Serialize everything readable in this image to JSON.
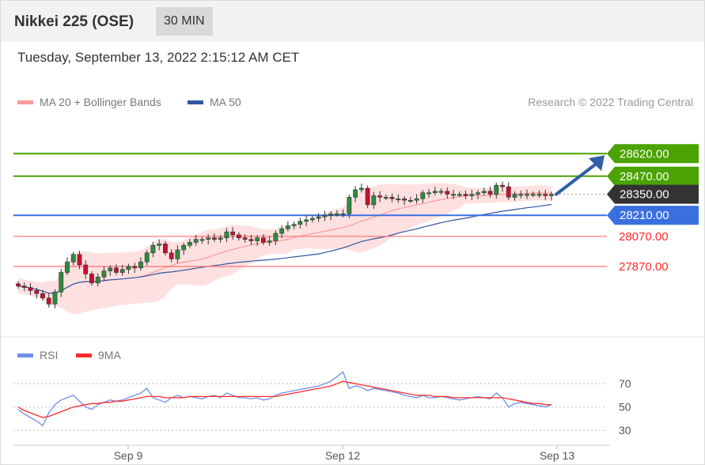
{
  "header": {
    "instrument": "Nikkei 225 (OSE)",
    "timeframe": "30 MIN"
  },
  "datetime": "Tuesday, September 13, 2022 2:15:12 AM CET",
  "legend": {
    "ma20": "MA 20 + Bollinger Bands",
    "ma50": "MA 50",
    "credit": "Research © 2022 Trading Central"
  },
  "rsi_legend": {
    "rsi": "RSI",
    "ma9": "9MA"
  },
  "colors": {
    "resistance": "#4aa300",
    "last": "#333333",
    "pivot": "#3a6fe0",
    "support": "#ff7a7a",
    "bollinger": "#ffd6d6",
    "ma20": "#ff9a9a",
    "ma50": "#2f56a0",
    "rsi": "#6f8fe8",
    "rsi_ma": "#ff2a2a",
    "candle_up": "#2e8b3c",
    "candle_down": "#c8102e",
    "arrow": "#2f5fa5"
  },
  "chart_data": [
    {
      "type": "candlestick",
      "ylim": [
        27470,
        28900
      ],
      "x_ticks": [
        "Sep 9",
        "Sep 12",
        "Sep 13"
      ],
      "levels": [
        {
          "label": "28620.00",
          "value": 28620,
          "kind": "resistance"
        },
        {
          "label": "28470.00",
          "value": 28470,
          "kind": "resistance"
        },
        {
          "label": "28350.00",
          "value": 28350,
          "kind": "last"
        },
        {
          "label": "28210.00",
          "value": 28210,
          "kind": "pivot"
        },
        {
          "label": "28070.00",
          "value": 28070,
          "kind": "support"
        },
        {
          "label": "27870.00",
          "value": 27870,
          "kind": "support"
        }
      ],
      "close": [
        27740,
        27730,
        27710,
        27690,
        27660,
        27620,
        27700,
        27830,
        27900,
        27950,
        27880,
        27820,
        27760,
        27800,
        27840,
        27860,
        27830,
        27850,
        27870,
        27860,
        27900,
        27960,
        28010,
        28020,
        27960,
        27920,
        27980,
        28010,
        28030,
        28050,
        28050,
        28060,
        28050,
        28060,
        28100,
        28080,
        28060,
        28050,
        28040,
        28060,
        28030,
        28040,
        28090,
        28120,
        28140,
        28150,
        28170,
        28180,
        28190,
        28200,
        28210,
        28220,
        28220,
        28220,
        28330,
        28380,
        28390,
        28280,
        28340,
        28330,
        28330,
        28320,
        28320,
        28310,
        28310,
        28320,
        28360,
        28360,
        28370,
        28370,
        28350,
        28350,
        28350,
        28340,
        28350,
        28360,
        28370,
        28350,
        28410,
        28400,
        28330,
        28350,
        28350,
        28350,
        28350,
        28350,
        28340,
        28350
      ],
      "rsi_ylim": [
        20,
        85
      ],
      "rsi_ticks": [
        70,
        50,
        30
      ],
      "rsi": [
        48,
        44,
        41,
        38,
        34,
        45,
        52,
        56,
        58,
        60,
        55,
        50,
        48,
        52,
        54,
        56,
        55,
        56,
        58,
        60,
        62,
        66,
        58,
        56,
        54,
        58,
        60,
        58,
        59,
        58,
        57,
        59,
        60,
        58,
        62,
        60,
        58,
        58,
        57,
        58,
        56,
        57,
        60,
        62,
        63,
        64,
        65,
        66,
        67,
        68,
        70,
        72,
        76,
        80,
        66,
        68,
        67,
        64,
        66,
        65,
        64,
        63,
        62,
        60,
        59,
        58,
        60,
        58,
        58,
        59,
        58,
        57,
        56,
        57,
        58,
        59,
        58,
        57,
        62,
        58,
        50,
        53,
        54,
        53,
        52,
        51,
        50,
        52
      ],
      "rsi_ma": [
        50,
        47,
        45,
        43,
        41,
        42,
        44,
        46,
        48,
        50,
        51,
        52,
        53,
        53,
        54,
        54,
        55,
        55,
        56,
        57,
        58,
        59,
        59,
        59,
        58,
        58,
        58,
        58,
        59,
        59,
        59,
        59,
        59,
        59,
        59,
        59,
        59,
        59,
        59,
        59,
        59,
        59,
        59,
        60,
        61,
        62,
        63,
        64,
        65,
        66,
        67,
        68,
        70,
        72,
        71,
        70,
        69,
        68,
        67,
        66,
        65,
        64,
        63,
        62,
        61,
        60,
        60,
        60,
        59,
        59,
        59,
        58,
        58,
        58,
        58,
        58,
        58,
        58,
        58,
        58,
        57,
        56,
        55,
        54,
        53,
        53,
        52,
        52
      ]
    }
  ]
}
